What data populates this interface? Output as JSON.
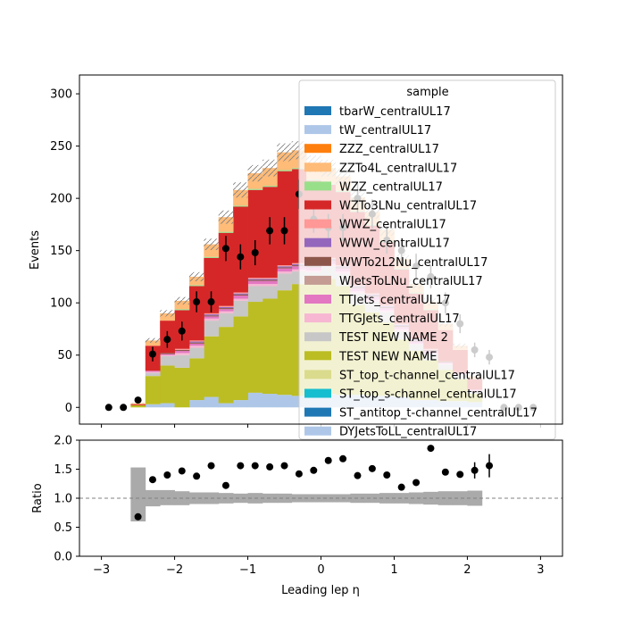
{
  "chart_data": [
    {
      "type": "area",
      "stacked": true,
      "ylabel": "Events",
      "xlim": [
        -3.3,
        3.3
      ],
      "ylim": [
        -16,
        318
      ],
      "yticks": [
        0,
        50,
        100,
        150,
        200,
        250,
        300
      ],
      "bin_edges": [
        -2.6,
        -2.4,
        -2.2,
        -2.0,
        -1.8,
        -1.6,
        -1.4,
        -1.2,
        -1.0,
        -0.8,
        -0.6,
        -0.4,
        -0.2,
        0.0,
        0.2,
        0.4,
        0.6,
        0.8,
        1.0,
        1.2,
        1.4,
        1.6,
        1.8,
        2.0,
        2.2,
        2.4
      ],
      "legend_title": "sample",
      "legend_location": "upper right",
      "legend_entries": [
        {
          "name": "tbarW_centralUL17",
          "color": "#1f77b4"
        },
        {
          "name": "tW_centralUL17",
          "color": "#aec7e8"
        },
        {
          "name": "ZZZ_centralUL17",
          "color": "#ff7f0e"
        },
        {
          "name": "ZZTo4L_centralUL17",
          "color": "#ffbb78"
        },
        {
          "name": "WZZ_centralUL17",
          "color": "#98df8a"
        },
        {
          "name": "WZTo3LNu_centralUL17",
          "color": "#d62728"
        },
        {
          "name": "WWZ_centralUL17",
          "color": "#ff9896"
        },
        {
          "name": "WWW_centralUL17",
          "color": "#9467bd"
        },
        {
          "name": "WWTo2L2Nu_centralUL17",
          "color": "#8c564b"
        },
        {
          "name": "WJetsToLNu_centralUL17",
          "color": "#c49c94"
        },
        {
          "name": "TTJets_centralUL17",
          "color": "#e377c2"
        },
        {
          "name": "TTGJets_centralUL17",
          "color": "#f7b6d2"
        },
        {
          "name": "TEST NEW NAME 2",
          "color": "#c7c7c7"
        },
        {
          "name": "TEST NEW NAME",
          "color": "#bcbd22"
        },
        {
          "name": "ST_top_t-channel_centralUL17",
          "color": "#dbdb8d"
        },
        {
          "name": "ST_top_s-channel_centralUL17",
          "color": "#17becf"
        },
        {
          "name": "ST_antitop_t-channel_centralUL17",
          "color": "#1f77b4"
        },
        {
          "name": "DYJetsToLL_centralUL17",
          "color": "#aec7e8"
        }
      ],
      "stack": [
        {
          "name": "DYJetsToLL_centralUL17",
          "color": "#aec7e8",
          "values": [
            0,
            3,
            4,
            0,
            7,
            10,
            4,
            7,
            14,
            13,
            12,
            11,
            11,
            13,
            12,
            12,
            11,
            11,
            10,
            7,
            7,
            6,
            6,
            5,
            0
          ]
        },
        {
          "name": "TEST NEW NAME",
          "color": "#bcbd22",
          "values": [
            2,
            27,
            36,
            38,
            40,
            58,
            73,
            80,
            87,
            91,
            100,
            107,
            108,
            110,
            104,
            86,
            80,
            70,
            55,
            47,
            38,
            30,
            21,
            8,
            0
          ]
        },
        {
          "name": "TEST NEW NAME 2",
          "color": "#c7c7c7",
          "values": [
            0,
            3,
            9,
            12,
            10,
            15,
            13,
            15,
            15,
            12,
            16,
            12,
            10,
            12,
            12,
            11,
            10,
            10,
            8,
            6,
            6,
            5,
            4,
            2,
            0
          ]
        },
        {
          "name": "TTGJets_centralUL17",
          "color": "#f7b6d2",
          "values": [
            0,
            1,
            1,
            2,
            2,
            2,
            2,
            2,
            2,
            2,
            2,
            2,
            2,
            2,
            2,
            2,
            2,
            2,
            2,
            1,
            1,
            1,
            1,
            1,
            0
          ]
        },
        {
          "name": "TTJets_centralUL17",
          "color": "#e377c2",
          "values": [
            0,
            1,
            1,
            2,
            2,
            2,
            2,
            3,
            3,
            3,
            3,
            3,
            3,
            3,
            3,
            3,
            3,
            2,
            2,
            2,
            2,
            1,
            1,
            1,
            0
          ]
        },
        {
          "name": "WJetsToLNu_centralUL17",
          "color": "#c49c94",
          "values": [
            0,
            0,
            0,
            0,
            0,
            0,
            0,
            0,
            0,
            0,
            0,
            0,
            0,
            0,
            0,
            0,
            0,
            0,
            0,
            0,
            0,
            0,
            0,
            0,
            0
          ]
        },
        {
          "name": "WWTo2L2Nu_centralUL17",
          "color": "#8c564b",
          "values": [
            0,
            0,
            1,
            1,
            1,
            1,
            1,
            1,
            1,
            1,
            1,
            1,
            1,
            1,
            1,
            1,
            1,
            1,
            1,
            1,
            1,
            1,
            0,
            0,
            0
          ]
        },
        {
          "name": "WWW_centralUL17",
          "color": "#9467bd",
          "values": [
            0,
            0,
            0,
            0,
            1,
            1,
            1,
            1,
            1,
            1,
            1,
            1,
            1,
            1,
            1,
            1,
            1,
            1,
            1,
            1,
            0,
            0,
            0,
            0,
            0
          ]
        },
        {
          "name": "WWZ_centralUL17",
          "color": "#ff9896",
          "values": [
            0,
            0,
            0,
            1,
            1,
            1,
            1,
            1,
            1,
            1,
            1,
            1,
            1,
            1,
            1,
            1,
            1,
            1,
            1,
            1,
            1,
            0,
            0,
            0,
            0
          ]
        },
        {
          "name": "WZTo3LNu_centralUL17",
          "color": "#d62728",
          "values": [
            1,
            24,
            31,
            37,
            52,
            53,
            70,
            82,
            84,
            87,
            90,
            90,
            80,
            70,
            70,
            70,
            65,
            60,
            52,
            43,
            37,
            30,
            22,
            10,
            0
          ]
        },
        {
          "name": "WZZ_centralUL17",
          "color": "#98df8a",
          "values": [
            0,
            0,
            0,
            1,
            1,
            1,
            1,
            1,
            1,
            1,
            1,
            1,
            1,
            1,
            1,
            1,
            1,
            1,
            1,
            1,
            1,
            0,
            0,
            0,
            0
          ]
        },
        {
          "name": "ZZTo4L_centralUL17",
          "color": "#ffbb78",
          "values": [
            1,
            5,
            7,
            8,
            8,
            12,
            14,
            15,
            15,
            17,
            17,
            17,
            15,
            15,
            14,
            13,
            12,
            11,
            9,
            8,
            7,
            6,
            4,
            3,
            0
          ]
        },
        {
          "name": "ZZZ_centralUL17",
          "color": "#ff7f0e",
          "values": [
            0,
            0,
            0,
            0,
            0,
            0,
            0,
            0,
            0,
            0,
            0,
            0,
            0,
            0,
            0,
            0,
            0,
            0,
            0,
            0,
            0,
            0,
            0,
            0,
            0
          ]
        },
        {
          "name": "tW_centralUL17",
          "color": "#aec7e8",
          "values": [
            0,
            0,
            0,
            0,
            0,
            0,
            0,
            0,
            0,
            0,
            0,
            0,
            0,
            0,
            0,
            0,
            0,
            0,
            0,
            0,
            0,
            0,
            0,
            0,
            0
          ]
        },
        {
          "name": "tbarW_centralUL17",
          "color": "#1f77b4",
          "values": [
            0,
            0,
            0,
            0,
            0,
            0,
            0,
            0,
            0,
            0,
            0,
            0,
            0,
            0,
            0,
            0,
            0,
            0,
            0,
            0,
            0,
            0,
            0,
            0,
            0
          ]
        }
      ],
      "data_points": {
        "x": [
          -2.9,
          -2.7,
          -2.5,
          -2.3,
          -2.1,
          -1.9,
          -1.7,
          -1.5,
          -1.3,
          -1.1,
          -0.9,
          -0.7,
          -0.5,
          -0.3,
          -0.1,
          0.1,
          0.3,
          0.5,
          0.7,
          0.9,
          1.1,
          1.3,
          1.5,
          1.7,
          1.9,
          2.1,
          2.3,
          2.5,
          2.7,
          2.9
        ],
        "y": [
          0,
          0,
          7,
          51,
          65,
          73,
          101,
          101,
          152,
          144,
          148,
          169,
          169,
          204,
          180,
          172,
          172,
          200,
          185,
          160,
          150,
          135,
          125,
          100,
          80,
          55,
          48,
          0,
          0,
          0
        ],
        "yerr": [
          0,
          0,
          3,
          7,
          8,
          9,
          10,
          10,
          12,
          12,
          12,
          13,
          13,
          14,
          13,
          13,
          13,
          14,
          14,
          13,
          12,
          12,
          11,
          10,
          9,
          7,
          7,
          0,
          0,
          0
        ]
      }
    },
    {
      "type": "scatter",
      "xlabel": "Leading lep η",
      "ylabel": "Ratio",
      "xlim": [
        -3.3,
        3.3
      ],
      "ylim": [
        0.0,
        2.0
      ],
      "xticks": [
        -3,
        -2,
        -1,
        0,
        1,
        2,
        3
      ],
      "yticks": [
        0.0,
        0.5,
        1.0,
        1.5,
        2.0
      ],
      "reference_line": 1.0,
      "uncertainty_band": {
        "bin_edges": [
          -2.6,
          -2.4,
          -2.2,
          -2.0,
          -1.8,
          -1.6,
          -1.4,
          -1.2,
          -1.0,
          -0.8,
          -0.6,
          -0.4,
          -0.2,
          0.0,
          0.2,
          0.4,
          0.6,
          0.8,
          1.0,
          1.2,
          1.4,
          1.6,
          1.8,
          2.0,
          2.2
        ],
        "low": [
          0.6,
          0.86,
          0.88,
          0.88,
          0.9,
          0.9,
          0.91,
          0.92,
          0.91,
          0.92,
          0.92,
          0.93,
          0.93,
          0.93,
          0.93,
          0.92,
          0.92,
          0.91,
          0.91,
          0.9,
          0.89,
          0.88,
          0.88,
          0.87
        ],
        "high": [
          1.53,
          1.14,
          1.14,
          1.12,
          1.1,
          1.1,
          1.09,
          1.08,
          1.09,
          1.08,
          1.08,
          1.07,
          1.07,
          1.07,
          1.07,
          1.08,
          1.08,
          1.09,
          1.09,
          1.1,
          1.11,
          1.12,
          1.12,
          1.13
        ]
      },
      "points": {
        "x": [
          -2.5,
          -2.3,
          -2.1,
          -1.9,
          -1.7,
          -1.5,
          -1.3,
          -1.1,
          -0.9,
          -0.7,
          -0.5,
          -0.3,
          -0.1,
          0.1,
          0.3,
          0.5,
          0.7,
          0.9,
          1.1,
          1.3,
          1.5,
          1.7,
          1.9,
          2.1,
          2.3
        ],
        "y": [
          0.68,
          1.32,
          1.4,
          1.47,
          1.38,
          1.56,
          1.22,
          1.56,
          1.56,
          1.54,
          1.56,
          1.42,
          1.48,
          1.65,
          1.68,
          1.39,
          1.51,
          1.4,
          1.19,
          1.27,
          1.86,
          1.45,
          1.41,
          1.48,
          1.56
        ],
        "yerr": [
          0,
          0.05,
          0.05,
          0.05,
          0.05,
          0.05,
          0.05,
          0.05,
          0.05,
          0.05,
          0.05,
          0.05,
          0.05,
          0.05,
          0.05,
          0.05,
          0.05,
          0.05,
          0.05,
          0.05,
          0.05,
          0.05,
          0.05,
          0.14,
          0.2
        ]
      }
    }
  ]
}
